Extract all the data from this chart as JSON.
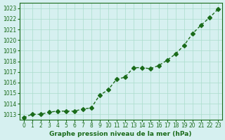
{
  "x": [
    0,
    1,
    2,
    3,
    4,
    5,
    6,
    7,
    8,
    9,
    10,
    11,
    12,
    13,
    14,
    15,
    16,
    17,
    18,
    19,
    20,
    21,
    22,
    23
  ],
  "y": [
    1012.7,
    1013.0,
    1013.0,
    1013.2,
    1013.3,
    1013.3,
    1013.3,
    1013.5,
    1013.6,
    1014.8,
    1015.3,
    1016.3,
    1016.5,
    1017.4,
    1017.4,
    1017.3,
    1017.6,
    1018.1,
    1018.7,
    1019.5,
    1020.6,
    1021.4,
    1022.1,
    1022.9
  ],
  "line_color": "#1a6b1a",
  "marker": "D",
  "marker_size": 3,
  "bg_color": "#d6f0f0",
  "grid_color": "#aaddcc",
  "title": "Graphe pression niveau de la mer (hPa)",
  "ylim_min": 1012.5,
  "ylim_max": 1023.5,
  "xlim_min": -0.5,
  "xlim_max": 23.5,
  "yticks": [
    1013,
    1014,
    1015,
    1016,
    1017,
    1018,
    1019,
    1020,
    1021,
    1022,
    1023
  ],
  "xticks": [
    0,
    1,
    2,
    3,
    4,
    5,
    6,
    7,
    8,
    9,
    10,
    11,
    12,
    13,
    14,
    15,
    16,
    17,
    18,
    19,
    20,
    21,
    22,
    23
  ]
}
